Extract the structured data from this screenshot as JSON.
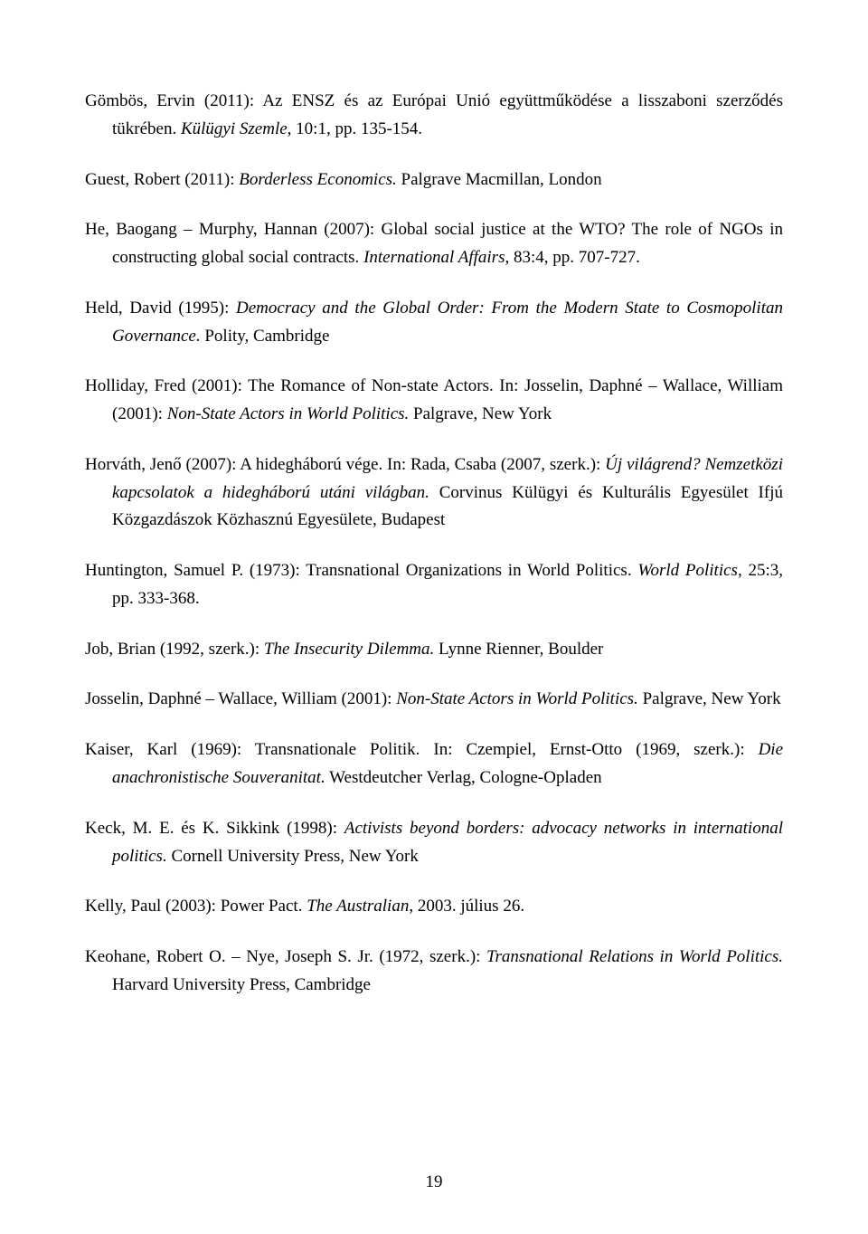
{
  "page_number": "19",
  "refs": [
    {
      "parts": [
        {
          "t": "Gömbös, Ervin (2011): Az ENSZ és az Európai Unió együttműködése a lisszaboni szerződés tükrében. ",
          "i": false
        },
        {
          "t": "Külügyi Szemle,",
          "i": true
        },
        {
          "t": " 10:1, pp. 135-154.",
          "i": false
        }
      ]
    },
    {
      "parts": [
        {
          "t": "Guest, Robert (2011): ",
          "i": false
        },
        {
          "t": "Borderless Economics.",
          "i": true
        },
        {
          "t": " Palgrave Macmillan, London",
          "i": false
        }
      ]
    },
    {
      "parts": [
        {
          "t": "He, Baogang – Murphy, Hannan (2007): Global social justice at the WTO? The role of NGOs in constructing global social contracts. ",
          "i": false
        },
        {
          "t": "International Affairs,",
          "i": true
        },
        {
          "t": " 83:4, pp. 707-727.",
          "i": false
        }
      ]
    },
    {
      "parts": [
        {
          "t": "Held, David (1995): ",
          "i": false
        },
        {
          "t": "Democracy and the Global Order: From the Modern State to Cosmopolitan Governance.",
          "i": true
        },
        {
          "t": " Polity, Cambridge",
          "i": false
        }
      ]
    },
    {
      "parts": [
        {
          "t": "Holliday, Fred (2001): The Romance of Non-state Actors. In: Josselin, Daphné – Wallace, William (2001): ",
          "i": false
        },
        {
          "t": "Non-State Actors in World Politics.",
          "i": true
        },
        {
          "t": " Palgrave, New York",
          "i": false
        }
      ]
    },
    {
      "parts": [
        {
          "t": "Horváth, Jenő (2007): A hidegháború vége. In: Rada, Csaba (2007, szerk.): ",
          "i": false
        },
        {
          "t": "Új világrend? Nemzetközi kapcsolatok a hidegháború utáni világban.",
          "i": true
        },
        {
          "t": " Corvinus Külügyi és Kulturális Egyesület Ifjú Közgazdászok Közhasznú Egyesülete, Budapest",
          "i": false
        }
      ]
    },
    {
      "parts": [
        {
          "t": "Huntington, Samuel P. (1973): Transnational Organizations in World Politics. ",
          "i": false
        },
        {
          "t": "World Politics",
          "i": true
        },
        {
          "t": ", 25:3, pp. 333-368.",
          "i": false
        }
      ]
    },
    {
      "parts": [
        {
          "t": "Job, Brian (1992, szerk.): ",
          "i": false
        },
        {
          "t": "The Insecurity Dilemma.",
          "i": true
        },
        {
          "t": " Lynne Rienner, Boulder",
          "i": false
        }
      ]
    },
    {
      "parts": [
        {
          "t": "Josselin, Daphné – Wallace, William (2001): ",
          "i": false
        },
        {
          "t": "Non-State Actors in World Politics.",
          "i": true
        },
        {
          "t": " Palgrave, New York",
          "i": false
        }
      ]
    },
    {
      "parts": [
        {
          "t": "Kaiser, Karl (1969): Transnationale Politik. In: Czempiel, Ernst-Otto (1969, szerk.): ",
          "i": false
        },
        {
          "t": "Die anachronistische Souveranitat.",
          "i": true
        },
        {
          "t": " Westdeutcher Verlag, Cologne-Opladen",
          "i": false
        }
      ]
    },
    {
      "parts": [
        {
          "t": "Keck, M. E. és K. Sikkink (1998): ",
          "i": false
        },
        {
          "t": "Activists beyond borders: advocacy networks in international politics.",
          "i": true
        },
        {
          "t": " Cornell University Press, New York",
          "i": false
        }
      ]
    },
    {
      "parts": [
        {
          "t": "Kelly, Paul (2003): Power Pact. ",
          "i": false
        },
        {
          "t": "The Australian",
          "i": true
        },
        {
          "t": ", 2003. július 26.",
          "i": false
        }
      ]
    },
    {
      "parts": [
        {
          "t": "Keohane, Robert O. – Nye, Joseph S. Jr. (1972, szerk.): ",
          "i": false
        },
        {
          "t": "Transnational Relations in World Politics.",
          "i": true
        },
        {
          "t": " Harvard University Press, Cambridge",
          "i": false
        }
      ]
    }
  ]
}
